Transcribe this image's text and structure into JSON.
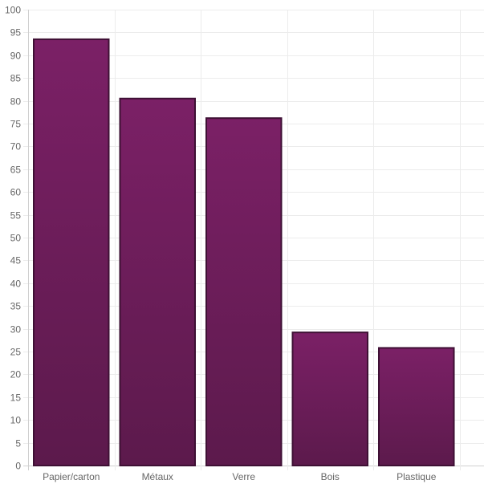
{
  "chart_data": {
    "type": "bar",
    "title": "",
    "xlabel": "",
    "ylabel": "",
    "categories": [
      "Papier/carton",
      "Métaux",
      "Verre",
      "Bois",
      "Plastique"
    ],
    "values": [
      93.5,
      80.5,
      76.2,
      29.2,
      25.8
    ],
    "ylim": [
      0,
      100
    ],
    "ytick_step": 5,
    "grid": true,
    "legend": "none",
    "colors": {
      "bar_top": "#7b2066",
      "bar_bottom": "#5c1a4c",
      "bar_border": "#3e1034"
    }
  }
}
